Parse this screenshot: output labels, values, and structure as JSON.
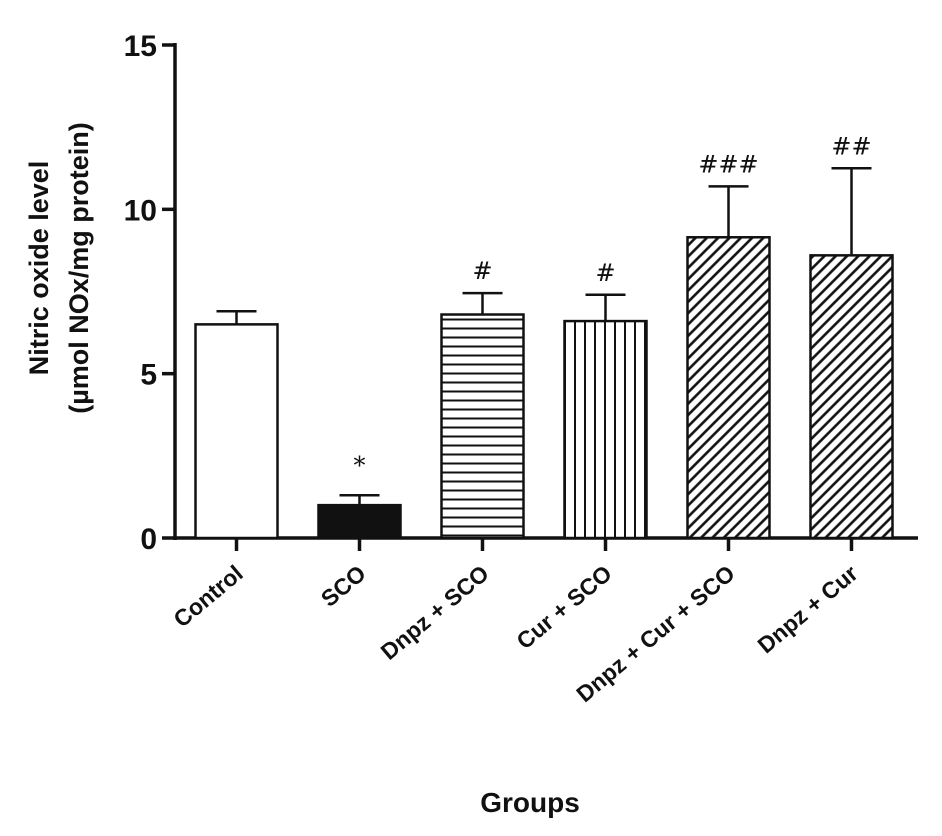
{
  "chart_data": {
    "type": "bar",
    "title": "",
    "xlabel": "Groups",
    "ylabel_line1": "Nitric oxide level",
    "ylabel_line2": "(µmol NOx/mg protein)",
    "ylim": [
      0,
      15
    ],
    "yticks": [
      0,
      5,
      10,
      15
    ],
    "grid": false,
    "legend": "none",
    "categories": [
      "Control",
      "SCO",
      "Dnpz + SCO",
      "Cur + SCO",
      "Dnpz + Cur + SCO",
      "Dnpz + Cur"
    ],
    "values": [
      6.5,
      1.0,
      6.8,
      6.6,
      9.15,
      8.6
    ],
    "errors": [
      0.4,
      0.3,
      0.65,
      0.8,
      1.55,
      2.65
    ],
    "annotations": [
      "",
      "*",
      "#",
      "#",
      "###",
      "##"
    ],
    "fills": [
      "open",
      "solid",
      "horizontal-lines",
      "vertical-lines",
      "diagonal-hatch",
      "diagonal-hatch"
    ]
  }
}
